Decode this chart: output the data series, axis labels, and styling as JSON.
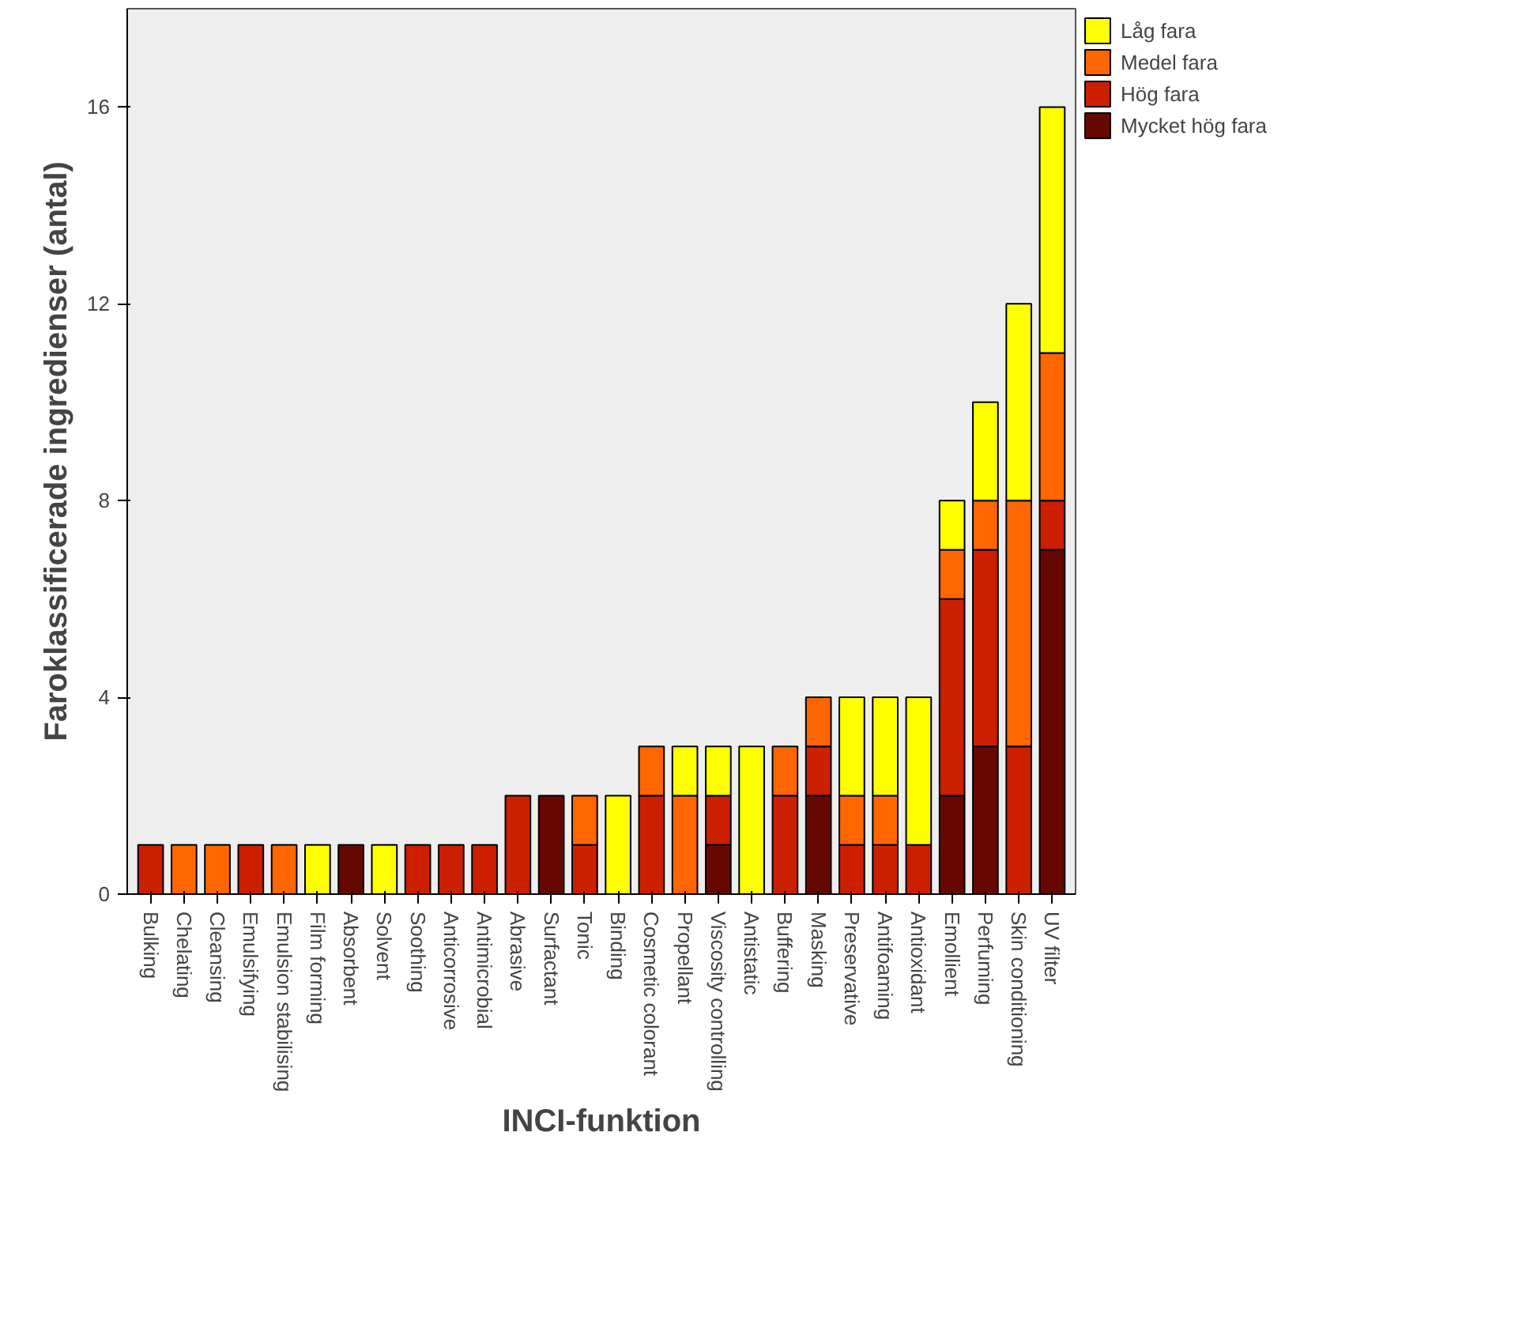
{
  "chart_data": {
    "type": "bar",
    "stacked": true,
    "xlabel": "INCI-funktion",
    "ylabel": "Faroklassificerade ingredienser (antal)",
    "categories": [
      "Bulking",
      "Chelating",
      "Cleansing",
      "Emulsifying",
      "Emulsion stabilising",
      "Film forming",
      "Absorbent",
      "Solvent",
      "Soothing",
      "Anticorrosive",
      "Antimicrobial",
      "Abrasive",
      "Surfactant",
      "Tonic",
      "Binding",
      "Cosmetic colorant",
      "Propellant",
      "Viscosity controlling",
      "Antistatic",
      "Buffering",
      "Masking",
      "Preservative",
      "Antifoaming",
      "Antioxidant",
      "Emollient",
      "Perfuming",
      "Skin conditioning",
      "UV filter"
    ],
    "series": [
      {
        "name": "Mycket hög fara",
        "color": "#660800",
        "values": [
          0,
          0,
          0,
          0,
          0,
          0,
          1,
          0,
          0,
          0,
          0,
          0,
          2,
          0,
          0,
          0,
          0,
          1,
          0,
          0,
          2,
          0,
          0,
          0,
          2,
          3,
          0,
          7
        ]
      },
      {
        "name": "Hög fara",
        "color": "#cc1f00",
        "values": [
          1,
          0,
          0,
          1,
          0,
          0,
          0,
          0,
          1,
          1,
          1,
          2,
          0,
          1,
          0,
          2,
          0,
          1,
          0,
          2,
          1,
          1,
          1,
          1,
          4,
          4,
          3,
          1
        ]
      },
      {
        "name": "Medel fara",
        "color": "#ff6600",
        "values": [
          0,
          1,
          1,
          0,
          1,
          0,
          0,
          0,
          0,
          0,
          0,
          0,
          0,
          1,
          0,
          1,
          2,
          0,
          0,
          1,
          1,
          1,
          1,
          0,
          1,
          1,
          5,
          3
        ]
      },
      {
        "name": "Låg fara",
        "color": "#ffff00",
        "values": [
          0,
          0,
          0,
          0,
          0,
          1,
          0,
          1,
          0,
          0,
          0,
          0,
          0,
          0,
          2,
          0,
          1,
          1,
          3,
          0,
          0,
          2,
          2,
          3,
          1,
          2,
          4,
          5
        ]
      }
    ],
    "ylim": [
      0,
      18
    ],
    "yticks": [
      0,
      4,
      8,
      12,
      16
    ],
    "grid": false,
    "legend": "top right"
  }
}
